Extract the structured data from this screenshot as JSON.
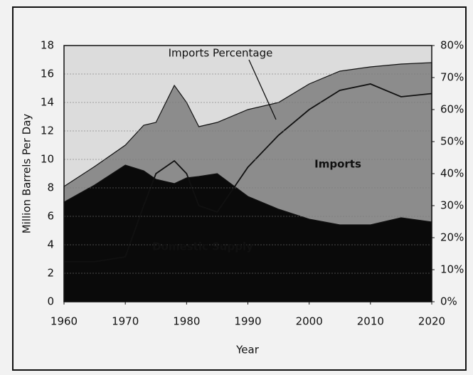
{
  "chart_data": {
    "type": "stacked_area",
    "y_label": "Million Barrels Per Day",
    "x_label": "Year",
    "x": [
      1960,
      1965,
      1970,
      1973,
      1975,
      1978,
      1980,
      1982,
      1985,
      1990,
      1995,
      2000,
      2005,
      2010,
      2015,
      2020
    ],
    "series": [
      {
        "name": "Domestic Supply",
        "color": "#0a0a0a",
        "values": [
          7.0,
          8.2,
          9.6,
          9.2,
          8.6,
          8.3,
          8.7,
          8.8,
          9.0,
          7.4,
          6.5,
          5.8,
          5.4,
          5.4,
          5.9,
          5.6
        ]
      },
      {
        "name": "Imports",
        "color": "#8c8c8c",
        "values": [
          1.1,
          1.3,
          1.4,
          3.2,
          4.0,
          6.9,
          5.3,
          3.5,
          3.6,
          6.1,
          7.5,
          9.5,
          10.8,
          11.1,
          10.8,
          11.2
        ]
      },
      {
        "name": "Imports Percentage",
        "color": "#111111",
        "axis": "y2",
        "values": [
          12.5,
          12.5,
          14,
          30,
          40,
          44,
          40,
          30,
          28,
          42,
          52,
          60,
          66,
          68,
          64,
          65
        ]
      }
    ],
    "xlim": [
      1960,
      2020
    ],
    "xticks": [
      1960,
      1970,
      1980,
      1990,
      2000,
      2010,
      2020
    ],
    "ylim": [
      0,
      18
    ],
    "yticks": [
      0,
      2,
      4,
      6,
      8,
      10,
      12,
      14,
      16,
      18
    ],
    "y2lim": [
      0,
      80
    ],
    "y2ticks": [
      {
        "value": 0,
        "label": "0%"
      },
      {
        "value": 10,
        "label": "10%"
      },
      {
        "value": 20,
        "label": "20%"
      },
      {
        "value": 30,
        "label": "30%"
      },
      {
        "value": 40,
        "label": "40%"
      },
      {
        "value": 50,
        "label": "50%"
      },
      {
        "value": 60,
        "label": "60%"
      },
      {
        "value": 70,
        "label": "70%"
      },
      {
        "value": 80,
        "label": "80%"
      }
    ],
    "grid": true
  }
}
